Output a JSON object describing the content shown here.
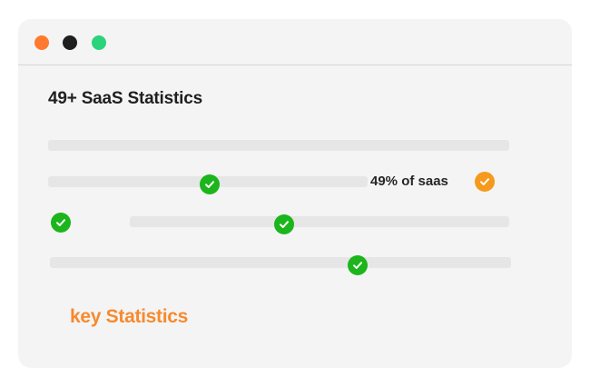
{
  "window": {
    "controls": [
      {
        "name": "close",
        "color": "#ff7a2f"
      },
      {
        "name": "minimize",
        "color": "#1f1f1f"
      },
      {
        "name": "maximize",
        "color": "#2bd37a"
      }
    ]
  },
  "content": {
    "title": "49+ SaaS Statistics",
    "stat_label": "49% of saas",
    "key_statistics": "key Statistics"
  },
  "colors": {
    "accent_orange": "#f68a2e",
    "check_green": "#1cb51c",
    "check_orange": "#f59a1c",
    "bar": "#e6e6e6",
    "background": "#f4f4f4"
  },
  "icons": {
    "check": "checkmark-icon"
  }
}
